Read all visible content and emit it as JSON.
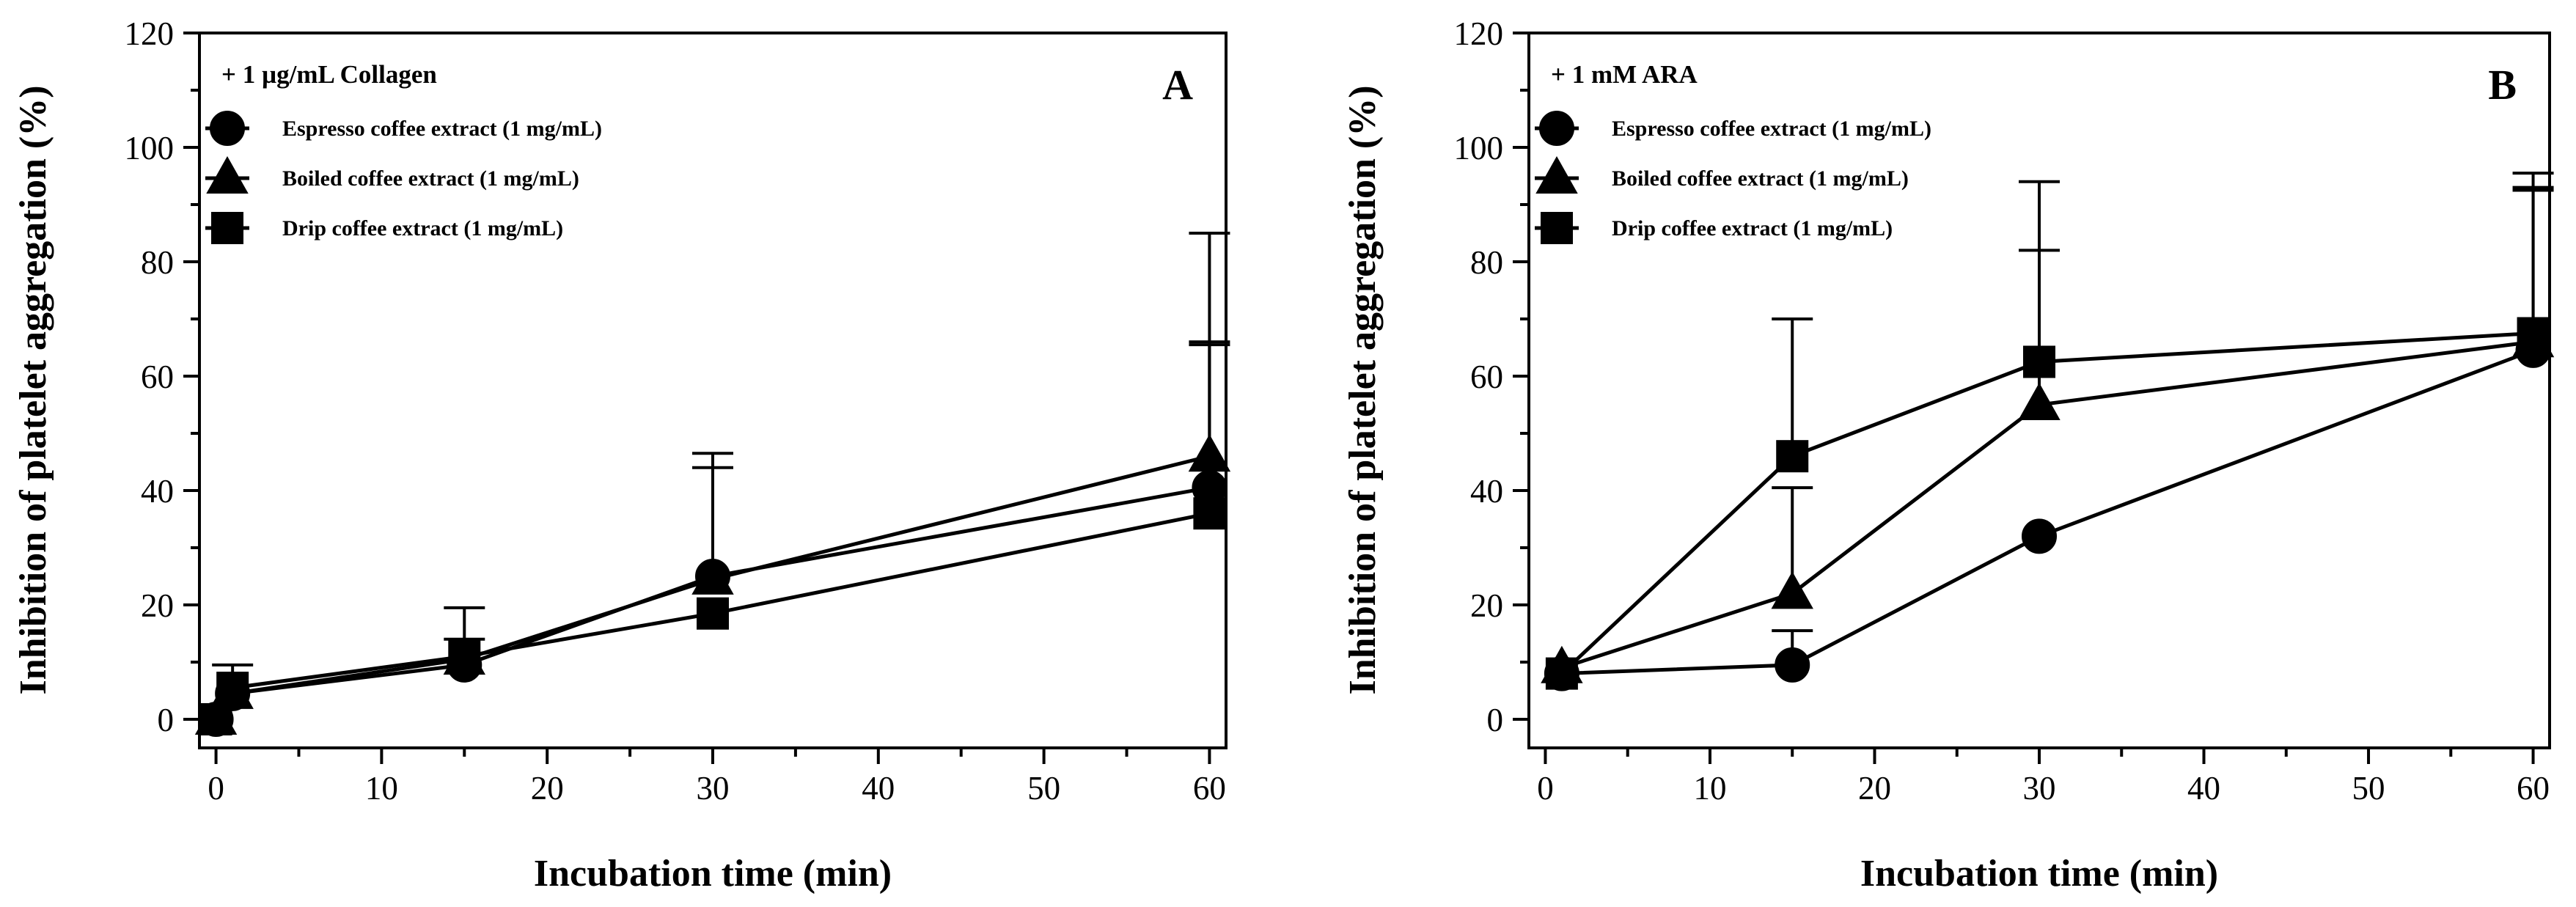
{
  "chart_data": [
    {
      "type": "line",
      "panel_label": "A",
      "condition": "+ 1 µg/mL Collagen",
      "xlabel": "Incubation time (min)",
      "ylabel": "Inhibition of platelet aggregation (%)",
      "xlim": [
        -1,
        61
      ],
      "ylim": [
        -5,
        120
      ],
      "xticks": [
        0,
        10,
        20,
        30,
        40,
        50,
        60
      ],
      "yticks": [
        0,
        20,
        40,
        60,
        80,
        100,
        120
      ],
      "legend_position": "top-left",
      "series": [
        {
          "name": "Espresso coffee extract (1 mg/mL)",
          "marker": "circle",
          "x": [
            0,
            1,
            15,
            30,
            60
          ],
          "y": [
            0,
            4.5,
            9.5,
            25,
            40.5
          ],
          "err": [
            0,
            0,
            0,
            19,
            25
          ]
        },
        {
          "name": "Boiled coffee extract (1 mg/mL)",
          "marker": "triangle",
          "x": [
            0,
            1,
            15,
            30,
            60
          ],
          "y": [
            0,
            4.5,
            10.5,
            24.5,
            46
          ],
          "err": [
            0,
            0,
            9,
            22,
            39
          ]
        },
        {
          "name": "Drip coffee extract (1 mg/mL)",
          "marker": "square",
          "x": [
            0,
            1,
            15,
            30,
            60
          ],
          "y": [
            0,
            5.5,
            11,
            18.5,
            36
          ],
          "err": [
            0,
            4,
            3,
            0,
            30
          ]
        }
      ]
    },
    {
      "type": "line",
      "panel_label": "B",
      "condition": "+ 1 mM ARA",
      "xlabel": "Incubation time (min)",
      "ylabel": "Inhibition of platelet aggregation (%)",
      "xlim": [
        -1,
        61
      ],
      "ylim": [
        -5,
        120
      ],
      "xticks": [
        0,
        10,
        20,
        30,
        40,
        50,
        60
      ],
      "yticks": [
        0,
        20,
        40,
        60,
        80,
        100,
        120
      ],
      "legend_position": "top-left",
      "series": [
        {
          "name": "Espresso coffee extract (1 mg/mL)",
          "marker": "circle",
          "x": [
            1,
            15,
            30,
            60
          ],
          "y": [
            8,
            9.5,
            32,
            64.5
          ],
          "err": [
            0,
            6,
            0,
            28
          ]
        },
        {
          "name": "Boiled coffee extract (1 mg/mL)",
          "marker": "triangle",
          "x": [
            1,
            15,
            30,
            60
          ],
          "y": [
            9,
            22,
            55,
            66
          ],
          "err": [
            0,
            18.5,
            27,
            27
          ]
        },
        {
          "name": "Drip coffee extract (1 mg/mL)",
          "marker": "square",
          "x": [
            1,
            15,
            30,
            60
          ],
          "y": [
            8,
            46,
            62.5,
            67.5
          ],
          "err": [
            0,
            24,
            31.5,
            28
          ]
        }
      ]
    }
  ]
}
